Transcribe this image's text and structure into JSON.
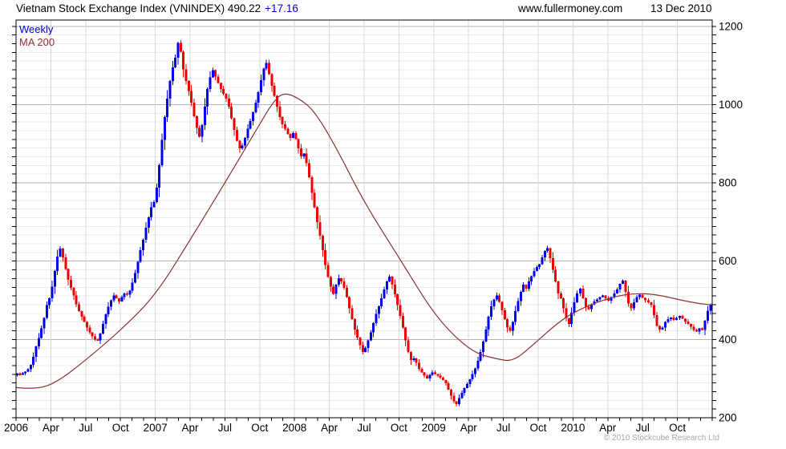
{
  "header": {
    "title": "Vietnam Stock Exchange Index (VNINDEX) 490.22",
    "change": "+17.16",
    "site": "www.fullermoney.com",
    "date": "13 Dec 2010"
  },
  "legend": {
    "weekly": "Weekly",
    "ma": "MA 200"
  },
  "footer": {
    "copyright": "© 2010 Stockcube Research Ltd"
  },
  "chart_data": {
    "type": "candlestick",
    "timeframe": "Weekly",
    "title": "Vietnam Stock Exchange Index (VNINDEX)",
    "last_price": 490.22,
    "change": "+17.16",
    "ylim": [
      200,
      1216
    ],
    "yticks": [
      200,
      400,
      600,
      800,
      1000,
      1200
    ],
    "minor_y_divisions_per_major": 9,
    "span_years": 5,
    "year_labels": [
      "2006",
      "2007",
      "2008",
      "2009",
      "2010"
    ],
    "quarter_labels": [
      "Apr",
      "Jul",
      "Oct"
    ],
    "weekly_closes_by_year": [
      {
        "year": 2006,
        "closes": [
          312,
          310,
          314,
          318,
          324,
          335,
          356,
          382,
          404,
          428,
          455,
          488,
          505,
          535,
          575,
          612,
          632,
          610,
          580,
          552,
          532,
          512,
          490,
          472,
          458,
          445,
          430,
          418,
          408,
          400,
          398,
          415,
          440,
          464,
          484,
          500,
          512,
          505,
          497,
          508,
          518,
          514,
          525,
          545,
          570,
          598,
          628,
          655,
          685,
          712,
          738,
          751
        ]
      },
      {
        "year": 2007,
        "closes": [
          788,
          845,
          910,
          968,
          1015,
          1060,
          1095,
          1120,
          1158,
          1135,
          1090,
          1060,
          1035,
          1005,
          970,
          940,
          918,
          948,
          995,
          1040,
          1070,
          1088,
          1072,
          1055,
          1040,
          1028,
          1015,
          995,
          965,
          935,
          908,
          888,
          895,
          915,
          938,
          958,
          980,
          1005,
          1032,
          1062,
          1092,
          1106,
          1078,
          1048,
          1022,
          995,
          968,
          950,
          938,
          925,
          915,
          927
        ]
      },
      {
        "year": 2008,
        "closes": [
          912,
          888,
          868,
          875,
          850,
          815,
          775,
          738,
          700,
          665,
          628,
          590,
          560,
          535,
          516,
          540,
          556,
          548,
          532,
          508,
          480,
          452,
          425,
          405,
          385,
          368,
          378,
          398,
          418,
          442,
          465,
          485,
          505,
          528,
          548,
          561,
          540,
          515,
          488,
          460,
          430,
          398,
          368,
          347,
          352,
          340,
          325,
          316,
          308,
          300,
          310,
          316
        ]
      },
      {
        "year": 2009,
        "closes": [
          312,
          308,
          302,
          296,
          288,
          272,
          256,
          242,
          235,
          250,
          264,
          276,
          286,
          298,
          312,
          326,
          345,
          368,
          395,
          425,
          458,
          485,
          502,
          512,
          496,
          474,
          452,
          430,
          422,
          445,
          472,
          498,
          522,
          540,
          530,
          548,
          562,
          575,
          585,
          592,
          610,
          626,
          633,
          608,
          578,
          548,
          518,
          505,
          480,
          454,
          440,
          468
        ]
      },
      {
        "year": 2010,
        "closes": [
          495,
          518,
          530,
          505,
          484,
          478,
          490,
          497,
          502,
          508,
          512,
          505,
          499,
          508,
          518,
          528,
          542,
          550,
          522,
          492,
          480,
          495,
          508,
          514,
          506,
          500,
          495,
          488,
          462,
          435,
          425,
          430,
          445,
          452,
          456,
          450,
          455,
          460,
          453,
          446,
          440,
          432,
          424,
          420,
          428,
          424,
          448,
          473,
          490.22
        ]
      }
    ],
    "ma200_anchors": [
      [
        0,
        277
      ],
      [
        0.15,
        272
      ],
      [
        0.3,
        292
      ],
      [
        0.5,
        347
      ],
      [
        0.75,
        423
      ],
      [
        1.0,
        512
      ],
      [
        1.25,
        654
      ],
      [
        1.5,
        800
      ],
      [
        1.7,
        920
      ],
      [
        1.85,
        1010
      ],
      [
        1.93,
        1032
      ],
      [
        2.05,
        1012
      ],
      [
        2.15,
        980
      ],
      [
        2.3,
        890
      ],
      [
        2.5,
        750
      ],
      [
        2.77,
        598
      ],
      [
        3.02,
        454
      ],
      [
        3.27,
        368
      ],
      [
        3.45,
        350
      ],
      [
        3.57,
        344
      ],
      [
        3.7,
        382
      ],
      [
        3.92,
        452
      ],
      [
        4.1,
        486
      ],
      [
        4.3,
        510
      ],
      [
        4.45,
        518
      ],
      [
        4.6,
        515
      ],
      [
        4.78,
        500
      ],
      [
        4.9,
        492
      ],
      [
        5.0,
        488
      ]
    ],
    "colors": {
      "up": "#0000EE",
      "down": "#EE0000",
      "ma": "#8B3333",
      "grid_major": "#B3B3B3",
      "grid_minor": "#EBEBEB",
      "grid_vert": "#D8D8D8",
      "axis": "#000000",
      "change_text": "#0000CC",
      "footer_text": "#A6A6A6"
    }
  }
}
